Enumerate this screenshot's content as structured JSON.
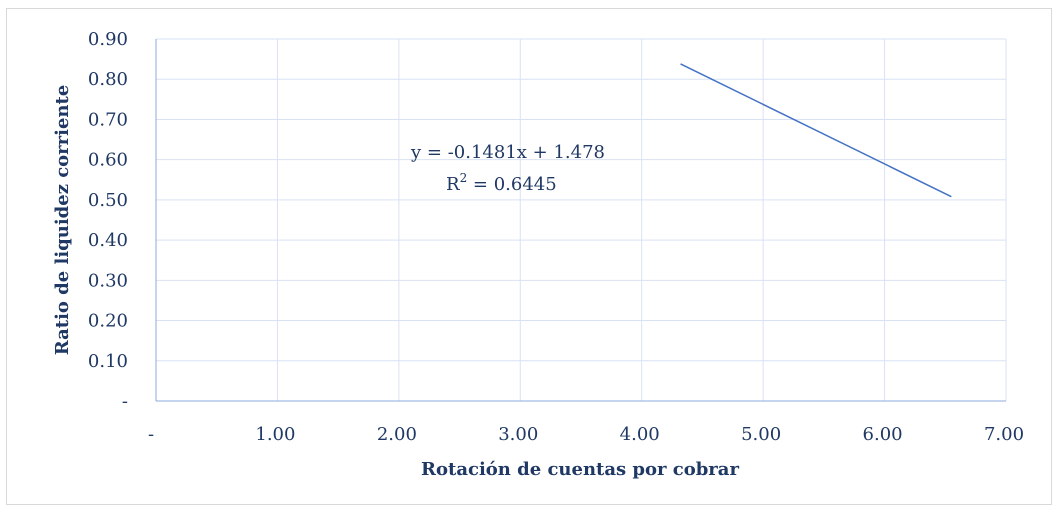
{
  "chart_data": {
    "type": "line",
    "xlabel": "Rotación de cuentas por cobrar",
    "ylabel": "Ratio de liquidez corriente",
    "xlim": [
      0,
      7
    ],
    "ylim": [
      0,
      0.9
    ],
    "x_ticks": [
      {
        "value": 0,
        "label": "-"
      },
      {
        "value": 1,
        "label": "1.00"
      },
      {
        "value": 2,
        "label": "2.00"
      },
      {
        "value": 3,
        "label": "3.00"
      },
      {
        "value": 4,
        "label": "4.00"
      },
      {
        "value": 5,
        "label": "5.00"
      },
      {
        "value": 6,
        "label": "6.00"
      },
      {
        "value": 7,
        "label": "7.00"
      }
    ],
    "y_ticks": [
      {
        "value": 0,
        "label": "-"
      },
      {
        "value": 0.1,
        "label": "0.10"
      },
      {
        "value": 0.2,
        "label": "0.20"
      },
      {
        "value": 0.3,
        "label": "0.30"
      },
      {
        "value": 0.4,
        "label": "0.40"
      },
      {
        "value": 0.5,
        "label": "0.50"
      },
      {
        "value": 0.6,
        "label": "0.60"
      },
      {
        "value": 0.7,
        "label": "0.70"
      },
      {
        "value": 0.8,
        "label": "0.80"
      },
      {
        "value": 0.9,
        "label": "0.90"
      }
    ],
    "grid": true,
    "series": [
      {
        "values": [
          {
            "x": 4.32,
            "y": 0.838
          },
          {
            "x": 6.55,
            "y": 0.508
          }
        ]
      }
    ],
    "annotation": {
      "equation": "y = -0.1481x + 1.478",
      "r2_prefix": "R",
      "r2_sup": "2",
      "r2_value": " = 0.6445"
    },
    "colors": {
      "line": "#4472c4",
      "grid": "#d9e2f3",
      "axis": "#8eaadb",
      "text": "#1f3864"
    }
  }
}
